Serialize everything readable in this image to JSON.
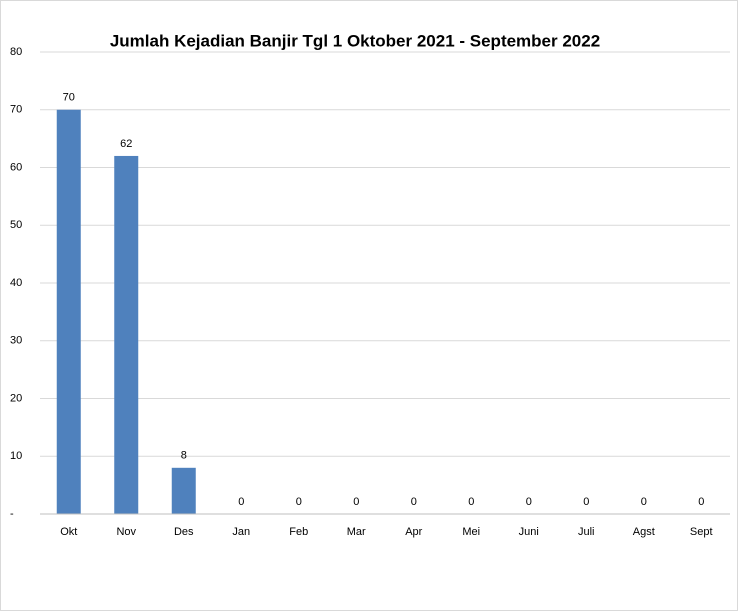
{
  "chart_data": {
    "type": "bar",
    "title": "Jumlah Kejadian Banjir Tgl 1 Oktober 2021 - September 2022",
    "categories": [
      "Okt",
      "Nov",
      "Des",
      "Jan",
      "Feb",
      "Mar",
      "Apr",
      "Mei",
      "Juni",
      "Juli",
      "Agst",
      "Sept"
    ],
    "values": [
      70,
      62,
      8,
      0,
      0,
      0,
      0,
      0,
      0,
      0,
      0,
      0
    ],
    "color": "#4f81bd",
    "ylim": [
      0,
      80
    ],
    "yticks": [
      {
        "value": 0,
        "label": "-"
      },
      10,
      20,
      30,
      40,
      50,
      60,
      70,
      80
    ],
    "grid": true
  }
}
